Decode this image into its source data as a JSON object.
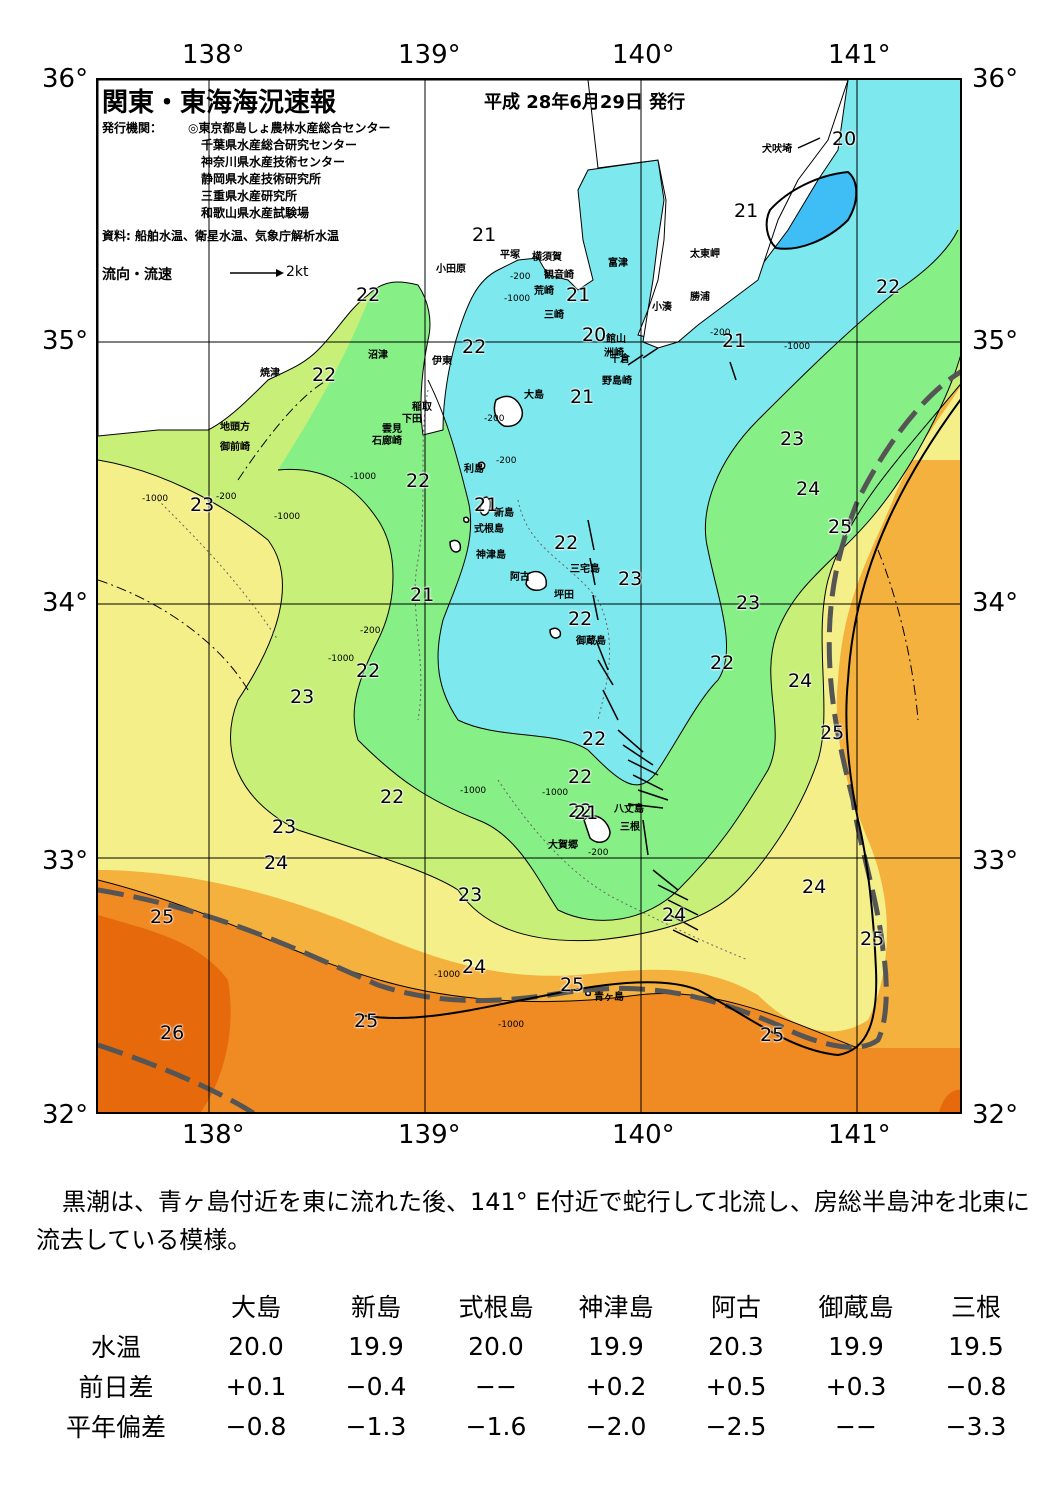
{
  "header": {
    "title": "関東・東海海況速報",
    "issue_date": "平成 28年6月29日 発行",
    "issuers_label": "発行機関：",
    "issuers": [
      "◎東京都島しょ農林水産総合センター",
      "千葉県水産総合研究センター",
      "神奈川県水産技術センター",
      "静岡県水産技術研究所",
      "三重県水産研究所",
      "和歌山県水産試験場"
    ],
    "sources": "資料: 船舶水温、衛星水温、気象庁解析水温",
    "flow_legend": "流向・流速",
    "flow_scale": "2kt"
  },
  "axes": {
    "longitudes": [
      "138°",
      "139°",
      "140°",
      "141°"
    ],
    "latitudes": [
      "36°",
      "35°",
      "34°",
      "33°",
      "32°"
    ]
  },
  "colors": {
    "t20": "#3fbef5",
    "t21": "#7de8ee",
    "t22": "#86ef86",
    "t23": "#c8ef78",
    "t24": "#f5ef8a",
    "t25": "#f5b13e",
    "t26": "#f08a23",
    "t27": "#e6690c",
    "land": "#ffffff",
    "kuroshio": "#555555"
  },
  "place_names": [
    "犬吠埼",
    "太東岬",
    "勝浦",
    "小湊",
    "富津",
    "平塚",
    "横須賀",
    "観音崎",
    "荒崎",
    "三崎",
    "洲崎",
    "館山",
    "千倉",
    "野島崎",
    "小田原",
    "沼津",
    "伊東",
    "焼津",
    "稲取",
    "下田",
    "雲見",
    "石廊崎",
    "地頭方",
    "御前崎",
    "大島",
    "利島",
    "新島",
    "式根島",
    "神津島",
    "阿古",
    "三宅島",
    "坪田",
    "御蔵島",
    "八丈島",
    "三根",
    "大賀郷",
    "青ヶ島"
  ],
  "temperature_labels": [
    "20",
    "21",
    "22",
    "21",
    "21",
    "20",
    "21",
    "22",
    "22",
    "22",
    "22",
    "21",
    "23",
    "23",
    "23",
    "24",
    "25",
    "21",
    "22",
    "22",
    "23",
    "23",
    "22",
    "21",
    "22",
    "23",
    "22",
    "22",
    "24",
    "22",
    "25",
    "22",
    "23",
    "24",
    "21",
    "23",
    "24",
    "25",
    "24",
    "24",
    "25",
    "25",
    "26",
    "25",
    "25"
  ],
  "depth_labels": [
    "-200",
    "-1000",
    "-200",
    "-1000",
    "-200",
    "-200",
    "-1000",
    "-200",
    "-1000",
    "-1000",
    "-200",
    "-1000",
    "-1000",
    "-1000",
    "-1000",
    "-1000",
    "-200"
  ],
  "summary": "黒潮は、青ヶ島付近を東に流れた後、141° E付近で蛇行して北流し、房総半島沖を北東に流去している模様。",
  "stations": {
    "columns": [
      "",
      "大島",
      "新島",
      "式根島",
      "神津島",
      "阿古",
      "御蔵島",
      "三根"
    ],
    "rows": [
      {
        "label": "水温",
        "values": [
          "20.0",
          "19.9",
          "20.0",
          "19.9",
          "20.3",
          "19.9",
          "19.5"
        ]
      },
      {
        "label": "前日差",
        "values": [
          "+0.1",
          "−0.4",
          "−−",
          "+0.2",
          "+0.5",
          "+0.3",
          "−0.8"
        ]
      },
      {
        "label": "平年偏差",
        "values": [
          "−0.8",
          "−1.3",
          "−1.6",
          "−2.0",
          "−2.5",
          "−−",
          "−3.3"
        ]
      }
    ]
  }
}
